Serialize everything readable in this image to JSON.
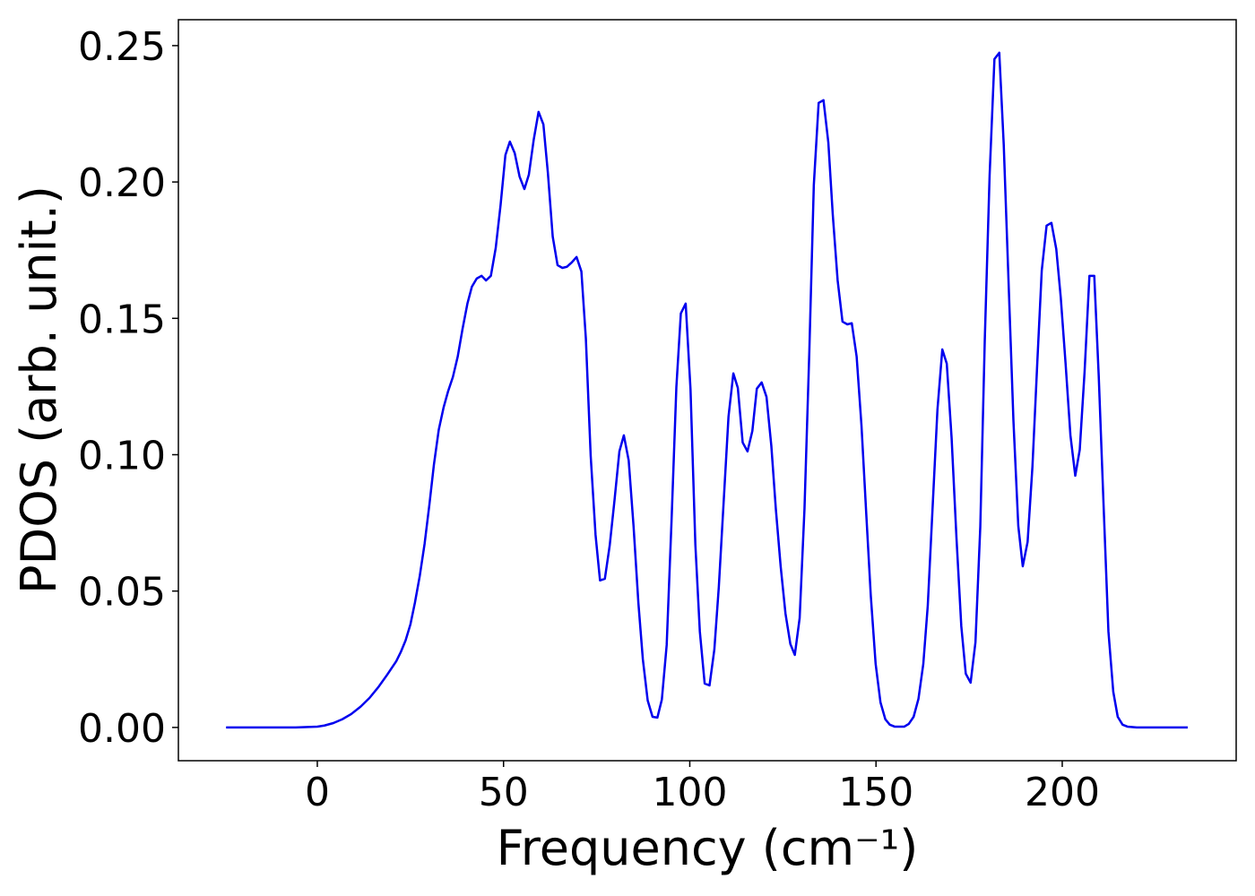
{
  "chart_data": {
    "type": "line",
    "xlabel": "Frequency (cm⁻¹)",
    "ylabel": "PDOS (arb. unit.)",
    "xlim": [
      -37.3,
      246.7
    ],
    "ylim": [
      -0.0122,
      0.2595
    ],
    "xticks": [
      0,
      50,
      100,
      150,
      200
    ],
    "yticks": [
      {
        "value": 0,
        "label": "0.00"
      },
      {
        "value": 0.05,
        "label": "0.05"
      },
      {
        "value": 0.1,
        "label": "0.10"
      },
      {
        "value": 0.15,
        "label": "0.15"
      },
      {
        "value": 0.2,
        "label": "0.20"
      },
      {
        "value": 0.25,
        "label": "0.25"
      }
    ],
    "series": [
      {
        "color": "#0000ee",
        "x": [
          -24.5,
          -5.8,
          0,
          1.9,
          4.3,
          6.7,
          9.1,
          11.6,
          14.0,
          16.4,
          18.8,
          21.2,
          22.4,
          23.7,
          25.0,
          26.2,
          27.5,
          28.8,
          30.1,
          31.3,
          32.6,
          33.9,
          35.1,
          36.4,
          37.7,
          39.0,
          40.3,
          41.5,
          42.8,
          44.1,
          45.3,
          46.6,
          47.9,
          49.2,
          50.5,
          51.7,
          53.0,
          54.3,
          55.6,
          56.8,
          58.1,
          59.4,
          60.7,
          61.9,
          63.2,
          64.5,
          65.8,
          67.0,
          68.3,
          69.6,
          70.9,
          72.1,
          73.4,
          74.7,
          75.9,
          77.2,
          78.5,
          79.8,
          81.1,
          82.3,
          83.6,
          84.9,
          86.2,
          87.4,
          88.7,
          90.0,
          91.3,
          92.5,
          93.8,
          95.1,
          96.4,
          97.6,
          98.9,
          100.2,
          101.5,
          102.7,
          104.0,
          105.3,
          106.6,
          107.8,
          109.1,
          110.4,
          111.7,
          112.9,
          114.2,
          115.5,
          116.8,
          118.0,
          119.3,
          120.6,
          121.9,
          123.1,
          124.4,
          125.7,
          127.0,
          128.2,
          129.5,
          130.8,
          132.1,
          133.3,
          134.6,
          135.9,
          137.2,
          138.4,
          139.7,
          141.0,
          142.3,
          143.5,
          144.8,
          146.1,
          147.4,
          148.6,
          149.9,
          151.2,
          152.5,
          153.7,
          155.0,
          156.3,
          157.6,
          158.8,
          160.1,
          161.4,
          162.7,
          163.9,
          165.2,
          166.5,
          167.8,
          169.0,
          170.3,
          171.6,
          172.9,
          174.1,
          175.4,
          176.7,
          178.0,
          179.2,
          180.5,
          181.8,
          183.1,
          184.3,
          185.6,
          186.9,
          188.2,
          189.4,
          190.7,
          192.0,
          193.3,
          194.5,
          195.8,
          197.1,
          198.4,
          199.6,
          200.9,
          202.2,
          203.5,
          204.7,
          206.0,
          207.3,
          208.6,
          209.8,
          211.1,
          212.4,
          213.7,
          214.9,
          216.2,
          217.5,
          220.0,
          233.7
        ],
        "values": [
          0,
          0,
          0.0003,
          0.0007,
          0.0016,
          0.003,
          0.0049,
          0.0076,
          0.0108,
          0.0148,
          0.0194,
          0.0243,
          0.0276,
          0.0319,
          0.0378,
          0.0457,
          0.0555,
          0.0673,
          0.0818,
          0.0963,
          0.1091,
          0.1173,
          0.1232,
          0.1285,
          0.136,
          0.1462,
          0.1554,
          0.1616,
          0.1646,
          0.1656,
          0.1639,
          0.1656,
          0.1758,
          0.1915,
          0.2099,
          0.2148,
          0.2106,
          0.202,
          0.1974,
          0.2027,
          0.2155,
          0.2257,
          0.2211,
          0.2034,
          0.18,
          0.1695,
          0.1685,
          0.1689,
          0.1705,
          0.1725,
          0.1672,
          0.1426,
          0.0995,
          0.0706,
          0.0539,
          0.0545,
          0.0667,
          0.0834,
          0.1012,
          0.1071,
          0.0979,
          0.0739,
          0.0457,
          0.025,
          0.0099,
          0.0039,
          0.0036,
          0.0102,
          0.0302,
          0.0756,
          0.1248,
          0.1518,
          0.1554,
          0.1239,
          0.067,
          0.0352,
          0.0161,
          0.0154,
          0.0286,
          0.0516,
          0.0828,
          0.114,
          0.1298,
          0.1245,
          0.1045,
          0.1012,
          0.1087,
          0.1242,
          0.1265,
          0.1212,
          0.1032,
          0.0802,
          0.0591,
          0.0417,
          0.0306,
          0.0266,
          0.0401,
          0.0802,
          0.138,
          0.1988,
          0.229,
          0.23,
          0.2145,
          0.1879,
          0.1639,
          0.1488,
          0.1478,
          0.1482,
          0.136,
          0.1107,
          0.0779,
          0.0483,
          0.0233,
          0.0092,
          0.003,
          0.001,
          0.0003,
          0.0003,
          0.0003,
          0.0013,
          0.0039,
          0.0105,
          0.0233,
          0.0447,
          0.0808,
          0.1166,
          0.1386,
          0.1334,
          0.1061,
          0.0696,
          0.0371,
          0.0197,
          0.0164,
          0.0312,
          0.0736,
          0.1419,
          0.2024,
          0.2451,
          0.2474,
          0.2135,
          0.1629,
          0.1124,
          0.0739,
          0.0591,
          0.068,
          0.0956,
          0.1337,
          0.1675,
          0.184,
          0.185,
          0.1754,
          0.1577,
          0.1334,
          0.1071,
          0.0923,
          0.1018,
          0.1304,
          0.1656,
          0.1656,
          0.1288,
          0.0815,
          0.0352,
          0.0131,
          0.0039,
          0.001,
          0.0003,
          0,
          0
        ]
      }
    ]
  }
}
